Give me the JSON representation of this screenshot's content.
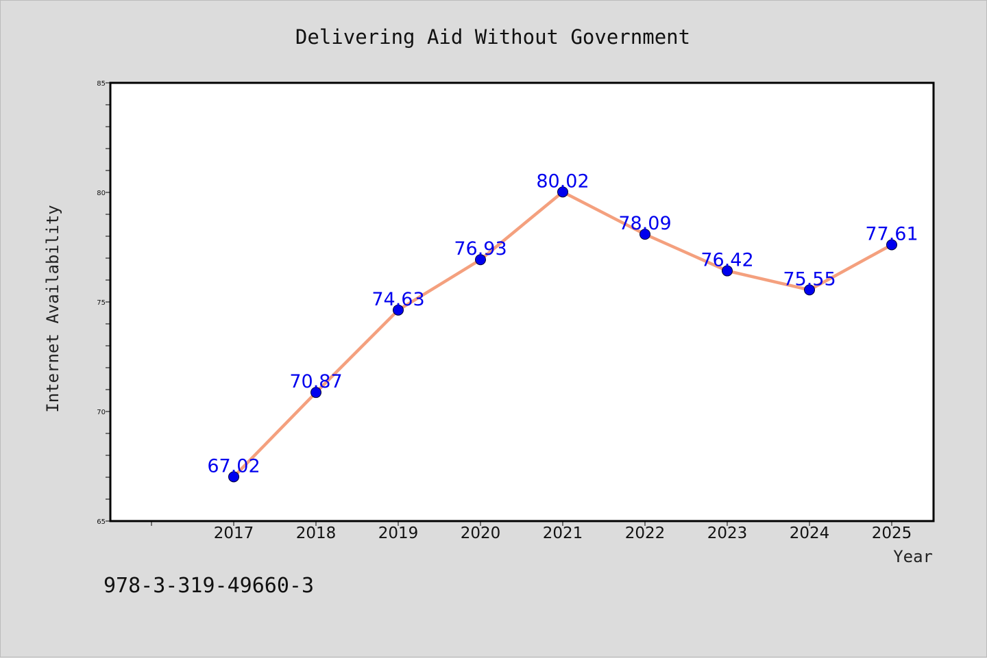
{
  "chart_data": {
    "type": "line",
    "title": "Delivering Aid Without Government",
    "xlabel": "Year",
    "ylabel": "Internet Availability",
    "categories": [
      "2017",
      "2018",
      "2019",
      "2020",
      "2021",
      "2022",
      "2023",
      "2024",
      "2025"
    ],
    "values": [
      67.02,
      70.87,
      74.63,
      76.93,
      80.02,
      78.09,
      76.42,
      75.55,
      77.61
    ],
    "data_labels": [
      "67.02",
      "70.87",
      "74.63",
      "76.93",
      "80.02",
      "78.09",
      "76.42",
      "75.55",
      "77.61"
    ],
    "ylim": [
      65,
      85
    ],
    "yticks": [
      "65",
      "70",
      "75",
      "80",
      "85"
    ],
    "grid": false,
    "line_color": "#f4a07e",
    "marker_color": "#0000ee",
    "label_color": "#0000ee"
  },
  "footer_text": "978-3-319-49660-3"
}
